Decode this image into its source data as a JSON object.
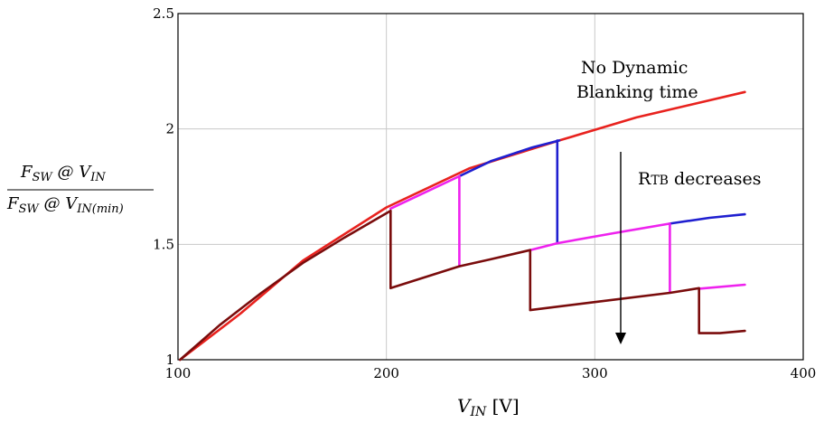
{
  "chart_data": {
    "type": "line",
    "xlim": [
      100,
      400
    ],
    "ylim": [
      1,
      2.5
    ],
    "x_ticks": [
      "100",
      "200",
      "300",
      "400"
    ],
    "y_ticks": [
      "1",
      "1.5",
      "2",
      "2.5"
    ],
    "grid": true,
    "xlabel": {
      "main": "V",
      "sub": "IN",
      "unit": " [V]"
    },
    "ylabel": {
      "numerator": {
        "main": "F",
        "sub": "SW",
        "mid": " @ V",
        "sub2": "IN"
      },
      "denominator": {
        "main": "F",
        "sub": "SW",
        "mid": " @ V",
        "sub2": "IN(min)"
      }
    },
    "annotations": {
      "no_dynamic_line1": "No Dynamic",
      "no_dynamic_line2": "Blanking time",
      "rtb_prefix": "R",
      "rtb_sub": "TB",
      "rtb_suffix": " decreases"
    },
    "colors": {
      "red": "#e8221e",
      "blue": "#1f1fd0",
      "magenta": "#ee22ee",
      "maroon": "#7a0c0c",
      "grid": "#c8c8c8"
    },
    "series": [
      {
        "color": "red",
        "points": [
          [
            101,
            1
          ],
          [
            130,
            1.2
          ],
          [
            160,
            1.43
          ],
          [
            200,
            1.66
          ],
          [
            240,
            1.83
          ],
          [
            283,
            1.95
          ],
          [
            320,
            2.05
          ],
          [
            372,
            2.16
          ]
        ]
      },
      {
        "color": "blue",
        "points": [
          [
            235,
            1.795
          ],
          [
            250,
            1.86
          ],
          [
            270,
            1.92
          ],
          [
            283,
            1.95
          ]
        ]
      },
      {
        "color": "magenta",
        "points": [
          [
            202,
            1.655
          ],
          [
            215,
            1.71
          ],
          [
            235,
            1.795
          ]
        ]
      },
      {
        "color": "maroon",
        "points": [
          [
            101,
            1
          ],
          [
            120,
            1.15
          ],
          [
            140,
            1.29
          ],
          [
            160,
            1.42
          ],
          [
            180,
            1.53
          ],
          [
            202,
            1.645
          ]
        ]
      },
      {
        "color": "blue",
        "points": [
          [
            282,
            1.95
          ],
          [
            282,
            1.505
          ]
        ]
      },
      {
        "color": "magenta",
        "points": [
          [
            282,
            1.505
          ],
          [
            310,
            1.55
          ],
          [
            336,
            1.59
          ]
        ]
      },
      {
        "color": "blue",
        "points": [
          [
            336,
            1.59
          ],
          [
            355,
            1.615
          ],
          [
            372,
            1.63
          ]
        ]
      },
      {
        "color": "magenta",
        "points": [
          [
            235,
            1.795
          ],
          [
            235,
            1.405
          ]
        ]
      },
      {
        "color": "maroon",
        "points": [
          [
            235,
            1.405
          ],
          [
            250,
            1.435
          ],
          [
            269,
            1.475
          ]
        ]
      },
      {
        "color": "magenta",
        "points": [
          [
            269,
            1.475
          ],
          [
            282,
            1.505
          ]
        ]
      },
      {
        "color": "magenta",
        "points": [
          [
            336,
            1.59
          ],
          [
            336,
            1.295
          ]
        ]
      },
      {
        "color": "magenta",
        "points": [
          [
            350,
            1.308
          ],
          [
            372,
            1.325
          ]
        ]
      },
      {
        "color": "maroon",
        "points": [
          [
            202,
            1.645
          ],
          [
            202,
            1.31
          ],
          [
            235,
            1.405
          ]
        ]
      },
      {
        "color": "maroon",
        "points": [
          [
            269,
            1.475
          ],
          [
            269,
            1.215
          ],
          [
            300,
            1.25
          ],
          [
            336,
            1.29
          ],
          [
            350,
            1.31
          ],
          [
            350,
            1.115
          ],
          [
            360,
            1.115
          ],
          [
            372,
            1.125
          ]
        ]
      }
    ]
  }
}
